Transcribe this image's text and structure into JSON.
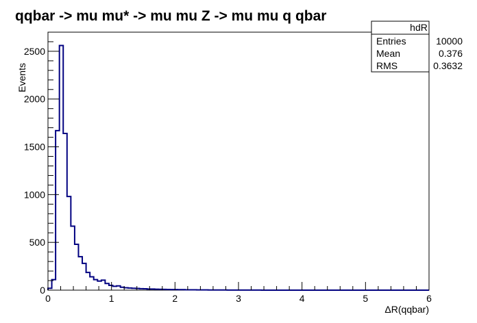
{
  "chart_data": {
    "type": "bar",
    "title": "qqbar -> mu mu* -> mu mu Z -> mu mu q qbar",
    "xlabel": "ΔR(qqbar)",
    "ylabel": "Events",
    "xlim": [
      0,
      6
    ],
    "ylim": [
      0,
      2700
    ],
    "bin_width": 0.06,
    "x_ticks": [
      0,
      1,
      2,
      3,
      4,
      5,
      6
    ],
    "y_ticks": [
      0,
      500,
      1000,
      1500,
      2000,
      2500
    ],
    "line_color": "#000080",
    "values": [
      20,
      110,
      1670,
      2560,
      1640,
      980,
      670,
      480,
      350,
      280,
      185,
      140,
      110,
      95,
      105,
      70,
      50,
      40,
      45,
      30,
      25,
      22,
      20,
      18,
      15,
      14,
      12,
      12,
      10,
      9,
      8,
      7,
      6,
      6,
      5,
      5,
      4,
      4,
      4,
      3,
      3,
      3,
      2,
      2,
      2,
      2,
      2,
      1,
      1,
      1,
      1,
      1,
      1,
      1,
      1,
      1,
      0,
      0,
      0,
      0,
      0,
      0,
      0,
      0,
      0,
      0,
      0,
      0,
      0,
      0,
      0,
      0,
      0,
      0,
      0,
      0,
      0,
      0,
      0,
      0,
      0,
      0,
      0,
      0,
      0,
      0,
      0,
      0,
      0,
      0,
      0,
      0,
      0,
      0,
      0,
      0,
      0,
      0,
      0,
      0
    ],
    "stats": {
      "name": "hdR",
      "rows": [
        {
          "label": "Entries",
          "value": "10000"
        },
        {
          "label": "Mean",
          "value": "0.376"
        },
        {
          "label": "RMS",
          "value": "0.3632"
        }
      ]
    }
  }
}
